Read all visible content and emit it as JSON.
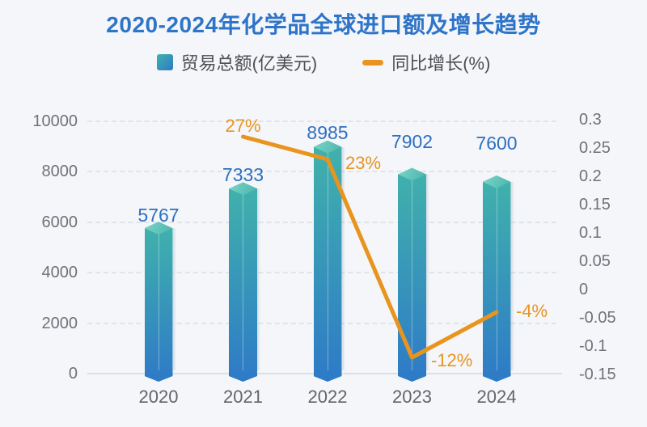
{
  "title": "2020-2024年化学品全球进口额及增长趋势",
  "legend": {
    "items": [
      {
        "label": "贸易总额(亿美元)",
        "series": "bar"
      },
      {
        "label": "同比增长(%)",
        "series": "line"
      }
    ]
  },
  "chart_data": {
    "type": "bar+line",
    "categories": [
      "2020",
      "2021",
      "2022",
      "2023",
      "2024"
    ],
    "series": [
      {
        "name": "贸易总额(亿美元)",
        "type": "bar",
        "y_axis": "left",
        "values": [
          5767,
          7333,
          8985,
          7902,
          7600
        ],
        "data_labels": [
          "5767",
          "7333",
          "8985",
          "7902",
          "7600"
        ],
        "color_top": "#40B1AC",
        "color_bottom": "#2E7AC7"
      },
      {
        "name": "同比增长(%)",
        "type": "line",
        "y_axis": "right",
        "values": [
          null,
          0.27,
          0.23,
          -0.12,
          -0.04
        ],
        "data_labels": [
          null,
          "27%",
          "23%",
          "-12%",
          "-4%"
        ],
        "color": "#E9941E"
      }
    ],
    "left_axis": {
      "range": [
        0,
        10000
      ],
      "tick_values": [
        0,
        2000,
        4000,
        6000,
        8000,
        10000
      ],
      "tick_labels": [
        "0",
        "2000",
        "4000",
        "6000",
        "8000",
        "10000"
      ]
    },
    "right_axis": {
      "range": [
        -0.15,
        0.3
      ],
      "tick_values": [
        0.3,
        0.25,
        0.2,
        0.15,
        0.1,
        0.05,
        0,
        -0.05,
        -0.1,
        -0.15
      ],
      "tick_labels": [
        "0.3",
        "0.25",
        "0.2",
        "0.15",
        "0.1",
        "0.05",
        "0",
        "-0.05",
        "-0.1",
        "-0.15"
      ]
    },
    "grid": {
      "horizontal": "dashed",
      "vertical": "none"
    },
    "legend_position": "top"
  },
  "colors": {
    "background": "#F4F6F9",
    "title": "#2E74C8",
    "bar_value_label": "#2F6FC1",
    "line": "#E9941E",
    "axis_text": "#6F7277",
    "grid_line": "#E0E4EA",
    "legend_text": "#4C4F54"
  }
}
